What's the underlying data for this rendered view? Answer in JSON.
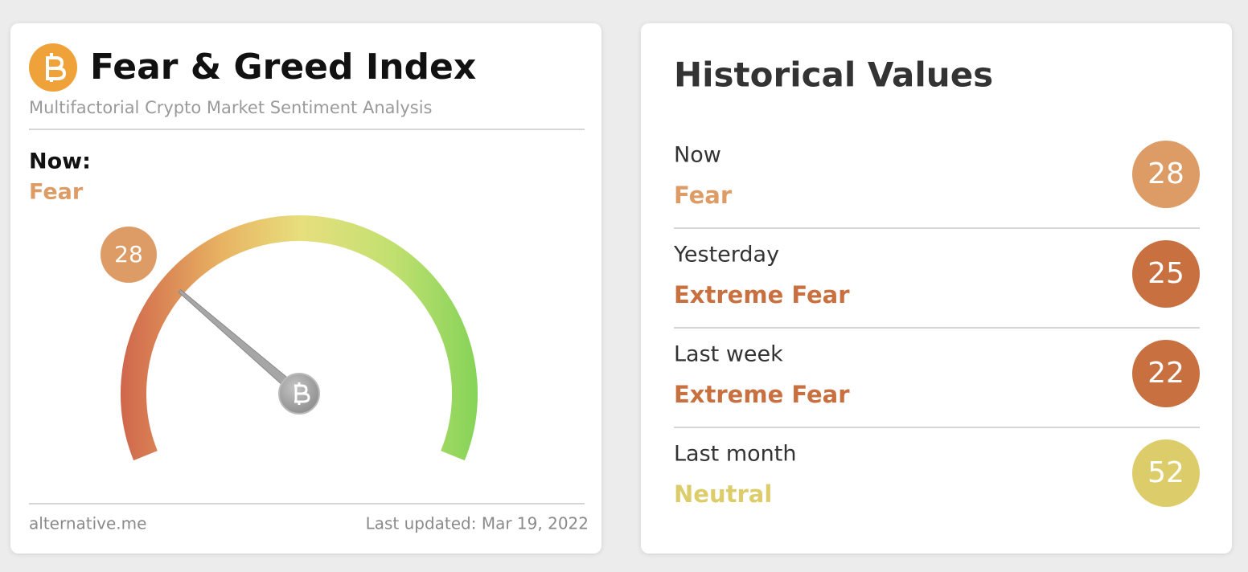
{
  "header": {
    "title": "Fear & Greed Index",
    "subtitle": "Multifactorial Crypto Market Sentiment Analysis"
  },
  "now": {
    "label": "Now:",
    "classification": "Fear",
    "color": "#dd9c66"
  },
  "chart_data": {
    "type": "gauge",
    "value": 28,
    "ylim": [
      0,
      100
    ],
    "color": "#dd9c66"
  },
  "footer": {
    "source": "alternative.me",
    "updated": "Last updated: Mar 19, 2022"
  },
  "history": {
    "title": "Historical Values",
    "items": [
      {
        "label": "Now",
        "classification": "Fear",
        "value": 28,
        "color": "#dd9c66"
      },
      {
        "label": "Yesterday",
        "classification": "Extreme Fear",
        "value": 25,
        "color": "#c8703f"
      },
      {
        "label": "Last week",
        "classification": "Extreme Fear",
        "value": 22,
        "color": "#c8703f"
      },
      {
        "label": "Last month",
        "classification": "Neutral",
        "value": 52,
        "color": "#dccd6a"
      }
    ]
  }
}
